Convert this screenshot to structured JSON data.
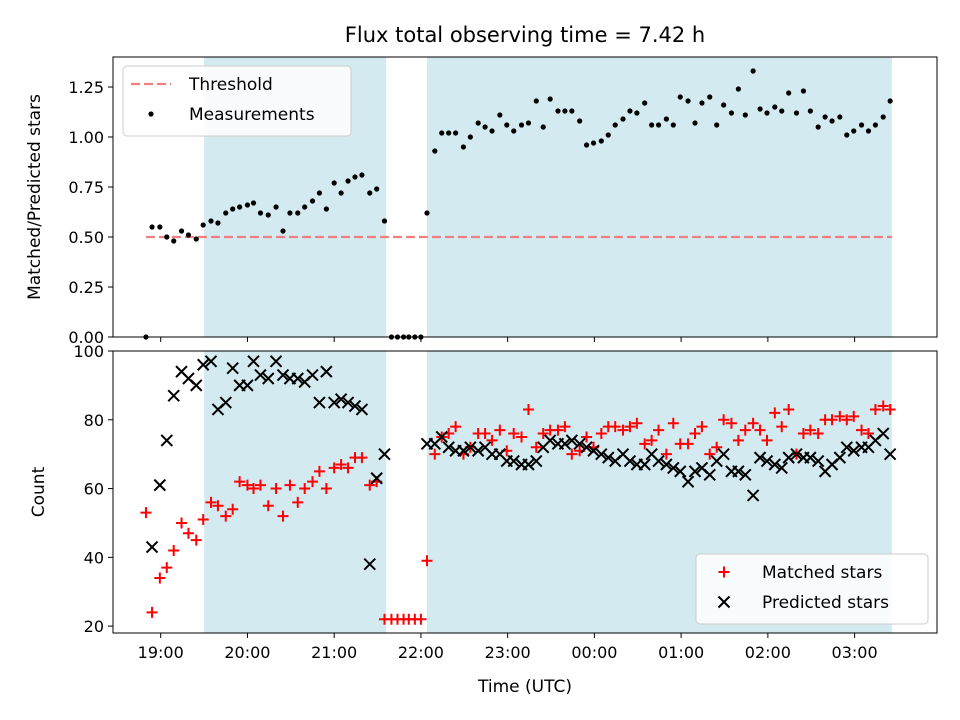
{
  "chart_data": {
    "type": "scatter",
    "title": "Flux total observing time = 7.42 h",
    "xlabel": "Time (UTC)",
    "x_ticks": [
      "19:00",
      "20:00",
      "21:00",
      "22:00",
      "23:00",
      "00:00",
      "01:00",
      "02:00",
      "03:00"
    ],
    "x_tick_hours": [
      19,
      20,
      21,
      22,
      23,
      24,
      25,
      26,
      27
    ],
    "xlim": [
      18.45,
      27.95
    ],
    "shaded_intervals": [
      [
        19.5,
        21.6
      ],
      [
        22.07,
        27.43
      ]
    ],
    "shade_color": "#d3eaf1",
    "panels": [
      {
        "ylabel": "Matched/Predicted stars",
        "ylim": [
          0,
          1.4
        ],
        "y_ticks": [
          "0.00",
          "0.25",
          "0.50",
          "0.75",
          "1.00",
          "1.25"
        ],
        "legend_placement": "top-left",
        "threshold": {
          "name": "Threshold",
          "value": 0.5,
          "x_range": [
            18.83,
            27.43
          ],
          "color": "#f08080"
        },
        "series": [
          {
            "name": "Measurements",
            "marker": "dot",
            "color": "#000000",
            "x": [
              18.83,
              18.9,
              18.99,
              19.07,
              19.15,
              19.24,
              19.32,
              19.41,
              19.49,
              19.58,
              19.66,
              19.75,
              19.83,
              19.91,
              20.0,
              20.07,
              20.15,
              20.24,
              20.33,
              20.41,
              20.49,
              20.58,
              20.66,
              20.75,
              20.83,
              20.91,
              21.0,
              21.08,
              21.16,
              21.24,
              21.32,
              21.41,
              21.49,
              21.58,
              21.66,
              21.73,
              21.8,
              21.86,
              21.93,
              22.0,
              22.07,
              22.16,
              22.24,
              22.32,
              22.4,
              22.49,
              22.57,
              22.66,
              22.74,
              22.82,
              22.91,
              22.99,
              23.07,
              23.16,
              23.24,
              23.33,
              23.41,
              23.49,
              23.58,
              23.66,
              23.74,
              23.83,
              23.91,
              23.99,
              24.08,
              24.16,
              24.24,
              24.33,
              24.41,
              24.49,
              24.58,
              24.66,
              24.74,
              24.83,
              24.91,
              24.99,
              25.08,
              25.16,
              25.24,
              25.33,
              25.41,
              25.49,
              25.58,
              25.66,
              25.74,
              25.83,
              25.91,
              25.99,
              26.08,
              26.16,
              26.24,
              26.33,
              26.41,
              26.49,
              26.58,
              26.66,
              26.74,
              26.83,
              26.91,
              26.99,
              27.08,
              27.16,
              27.24,
              27.33,
              27.41
            ],
            "y": [
              0.0,
              0.55,
              0.55,
              0.5,
              0.48,
              0.53,
              0.51,
              0.49,
              0.56,
              0.58,
              0.57,
              0.62,
              0.64,
              0.65,
              0.66,
              0.67,
              0.62,
              0.61,
              0.65,
              0.53,
              0.62,
              0.62,
              0.65,
              0.68,
              0.72,
              0.64,
              0.77,
              0.72,
              0.78,
              0.8,
              0.81,
              0.72,
              0.74,
              0.58,
              0.0,
              0.0,
              0.0,
              0.0,
              0.0,
              0.0,
              0.62,
              0.93,
              1.02,
              1.02,
              1.02,
              0.95,
              1.0,
              1.07,
              1.05,
              1.03,
              1.11,
              1.06,
              1.03,
              1.06,
              1.07,
              1.18,
              1.05,
              1.19,
              1.13,
              1.13,
              1.13,
              1.08,
              0.96,
              0.97,
              0.98,
              1.01,
              1.06,
              1.09,
              1.13,
              1.12,
              1.17,
              1.06,
              1.06,
              1.09,
              1.06,
              1.2,
              1.18,
              1.07,
              1.17,
              1.2,
              1.06,
              1.16,
              1.12,
              1.24,
              1.11,
              1.33,
              1.14,
              1.12,
              1.15,
              1.13,
              1.22,
              1.12,
              1.23,
              1.13,
              1.05,
              1.1,
              1.08,
              1.1,
              1.01,
              1.03,
              1.06,
              1.03,
              1.06,
              1.1,
              1.18
            ]
          }
        ]
      },
      {
        "ylabel": "Count",
        "ylim": [
          18,
          100
        ],
        "y_ticks": [
          "20",
          "40",
          "60",
          "80",
          "100"
        ],
        "legend_placement": "bottom-right",
        "series": [
          {
            "name": "Matched stars",
            "marker": "plus",
            "color": "#ff0000",
            "x": [
              18.83,
              18.9,
              18.99,
              19.07,
              19.15,
              19.24,
              19.32,
              19.41,
              19.49,
              19.58,
              19.66,
              19.75,
              19.83,
              19.91,
              20.0,
              20.07,
              20.15,
              20.24,
              20.33,
              20.41,
              20.49,
              20.58,
              20.66,
              20.75,
              20.83,
              20.91,
              21.0,
              21.08,
              21.16,
              21.24,
              21.32,
              21.41,
              21.49,
              21.58,
              21.66,
              21.73,
              21.8,
              21.86,
              21.93,
              22.0,
              22.07,
              22.16,
              22.24,
              22.32,
              22.4,
              22.49,
              22.57,
              22.66,
              22.74,
              22.82,
              22.91,
              22.99,
              23.07,
              23.16,
              23.24,
              23.33,
              23.41,
              23.49,
              23.58,
              23.66,
              23.74,
              23.83,
              23.91,
              23.99,
              24.08,
              24.16,
              24.24,
              24.33,
              24.41,
              24.49,
              24.58,
              24.66,
              24.74,
              24.83,
              24.91,
              24.99,
              25.08,
              25.16,
              25.24,
              25.33,
              25.41,
              25.49,
              25.58,
              25.66,
              25.74,
              25.83,
              25.91,
              25.99,
              26.08,
              26.16,
              26.24,
              26.33,
              26.41,
              26.49,
              26.58,
              26.66,
              26.74,
              26.83,
              26.91,
              26.99,
              27.08,
              27.16,
              27.24,
              27.33,
              27.41
            ],
            "y": [
              53,
              24,
              34,
              37,
              42,
              50,
              47,
              45,
              51,
              56,
              55,
              52,
              54,
              62,
              61,
              60,
              61,
              55,
              60,
              52,
              61,
              56,
              60,
              62,
              65,
              60,
              66,
              67,
              66,
              69,
              69,
              61,
              62,
              22,
              22,
              22,
              22,
              22,
              22,
              22,
              39,
              70,
              75,
              76,
              78,
              70,
              72,
              76,
              76,
              74,
              77,
              71,
              76,
              75,
              83,
              72,
              76,
              77,
              77,
              78,
              70,
              71,
              75,
              72,
              76,
              78,
              78,
              77,
              78,
              79,
              73,
              74,
              77,
              70,
              79,
              73,
              73,
              76,
              78,
              70,
              72,
              80,
              79,
              74,
              77,
              79,
              77,
              74,
              82,
              78,
              83,
              70,
              76,
              77,
              76,
              80,
              80,
              81,
              80,
              81,
              77,
              76,
              83,
              84,
              83
            ]
          },
          {
            "name": "Predicted stars",
            "marker": "cross",
            "color": "#000000",
            "x": [
              18.9,
              18.99,
              19.07,
              19.15,
              19.24,
              19.32,
              19.41,
              19.49,
              19.58,
              19.66,
              19.75,
              19.83,
              19.91,
              20.0,
              20.07,
              20.15,
              20.24,
              20.33,
              20.41,
              20.49,
              20.58,
              20.66,
              20.75,
              20.83,
              20.91,
              21.0,
              21.08,
              21.16,
              21.24,
              21.32,
              21.41,
              21.49,
              21.58,
              22.07,
              22.16,
              22.24,
              22.32,
              22.4,
              22.49,
              22.57,
              22.66,
              22.74,
              22.82,
              22.91,
              22.99,
              23.07,
              23.16,
              23.24,
              23.33,
              23.41,
              23.49,
              23.58,
              23.66,
              23.74,
              23.83,
              23.91,
              23.99,
              24.08,
              24.16,
              24.24,
              24.33,
              24.41,
              24.49,
              24.58,
              24.66,
              24.74,
              24.83,
              24.91,
              24.99,
              25.08,
              25.16,
              25.24,
              25.33,
              25.41,
              25.49,
              25.58,
              25.66,
              25.74,
              25.83,
              25.91,
              25.99,
              26.08,
              26.16,
              26.24,
              26.33,
              26.41,
              26.49,
              26.58,
              26.66,
              26.74,
              26.83,
              26.91,
              26.99,
              27.08,
              27.16,
              27.24,
              27.33,
              27.41
            ],
            "y": [
              43,
              61,
              74,
              87,
              94,
              92,
              90,
              96,
              97,
              83,
              85,
              95,
              90,
              90,
              97,
              93,
              92,
              97,
              93,
              92,
              92,
              91,
              93,
              85,
              94,
              85,
              86,
              85,
              84,
              83,
              38,
              63,
              70,
              73,
              73,
              75,
              72,
              71,
              71,
              72,
              71,
              72,
              70,
              70,
              68,
              68,
              67,
              67,
              68,
              72,
              74,
              73,
              73,
              74,
              73,
              72,
              71,
              70,
              69,
              68,
              70,
              68,
              67,
              67,
              70,
              68,
              67,
              66,
              65,
              62,
              65,
              66,
              64,
              68,
              70,
              65,
              65,
              64,
              58,
              69,
              68,
              67,
              66,
              69,
              70,
              69,
              69,
              68,
              65,
              67,
              69,
              72,
              71,
              72,
              72,
              74,
              76,
              70
            ]
          }
        ]
      }
    ]
  }
}
